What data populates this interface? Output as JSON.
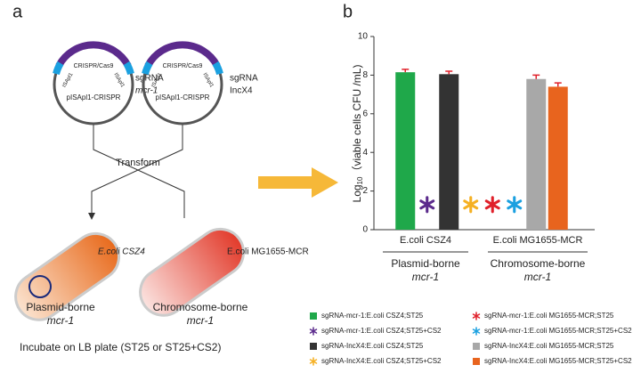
{
  "panel_a": {
    "letter": "a",
    "plasmid_1": {
      "cas": "CRISPR/Cas9",
      "is_left": "ISApl1",
      "is_right": "ISApl1",
      "name": "pISApl1-CRISPR",
      "sg": "sgRNA",
      "target": "mcr-1"
    },
    "plasmid_2": {
      "cas": "CRISPR/Cas9",
      "is_left": "ISApl1",
      "is_right": "ISApl1",
      "name": "pISApl1-CRISPR",
      "sg": "sgRNA",
      "target": "IncX4"
    },
    "transform": "Transform",
    "cell_1": {
      "strain": "E.coli CSZ4",
      "label": "Plasmid-borne",
      "gene": "mcr-1"
    },
    "cell_2": {
      "strain": "E.coli MG1655-MCR",
      "label": "Chromosome-borne",
      "gene": "mcr-1"
    },
    "footer": "Incubate on LB plate  (ST25 or ST25+CS2)"
  },
  "chart_data": {
    "type": "bar",
    "letter": "b",
    "ylabel": {
      "base": "Log",
      "sub": "10",
      "rest": "（viable cells CFU /mL)"
    },
    "ylim": [
      0,
      10
    ],
    "yticks": [
      0,
      2,
      4,
      6,
      8,
      10
    ],
    "groups": [
      {
        "strain": "E.coli CSZ4",
        "label": "Plasmid-borne",
        "gene": "mcr-1"
      },
      {
        "strain": "E.coli MG1655-MCR",
        "label": "Chromosome-borne",
        "gene": "mcr-1"
      }
    ],
    "series": [
      {
        "name": "sgRNA-mcr-1:E.coli CSZ4;ST25",
        "color": "#1fa84a",
        "marker": "bar",
        "values": [
          8.15
        ],
        "errors": [
          0.15
        ]
      },
      {
        "name": "sgRNA-mcr-1:E.coli CSZ4;ST25+CS2",
        "color": "#5b2a8c",
        "marker": "star",
        "values": [
          1.3
        ]
      },
      {
        "name": "sgRNA-IncX4:E.coli CSZ4;ST25",
        "color": "#333333",
        "marker": "bar",
        "values": [
          8.05
        ],
        "errors": [
          0.15
        ]
      },
      {
        "name": "sgRNA-IncX4:E.coli CSZ4;ST25+CS2",
        "color": "#f5b022",
        "marker": "star",
        "values": [
          1.3
        ]
      },
      {
        "name": "sgRNA-mcr-1:E.coli MG1655-MCR;ST25",
        "color": "#e0202a",
        "marker": "star",
        "values": [
          1.3
        ]
      },
      {
        "name": "sgRNA-mcr-1:E.coli MG1655-MCR;ST25+CS2",
        "color": "#1aa0e0",
        "marker": "star",
        "values": [
          1.3
        ]
      },
      {
        "name": "sgRNA-IncX4:E.coli MG1655-MCR;ST25",
        "color": "#a8a8a8",
        "marker": "bar",
        "values": [
          7.8
        ],
        "errors": [
          0.2
        ]
      },
      {
        "name": "sgRNA-IncX4:E.coli MG1655-MCR;ST25+CS2",
        "color": "#e8641e",
        "marker": "bar",
        "values": [
          7.4
        ],
        "errors": [
          0.2
        ]
      }
    ]
  }
}
